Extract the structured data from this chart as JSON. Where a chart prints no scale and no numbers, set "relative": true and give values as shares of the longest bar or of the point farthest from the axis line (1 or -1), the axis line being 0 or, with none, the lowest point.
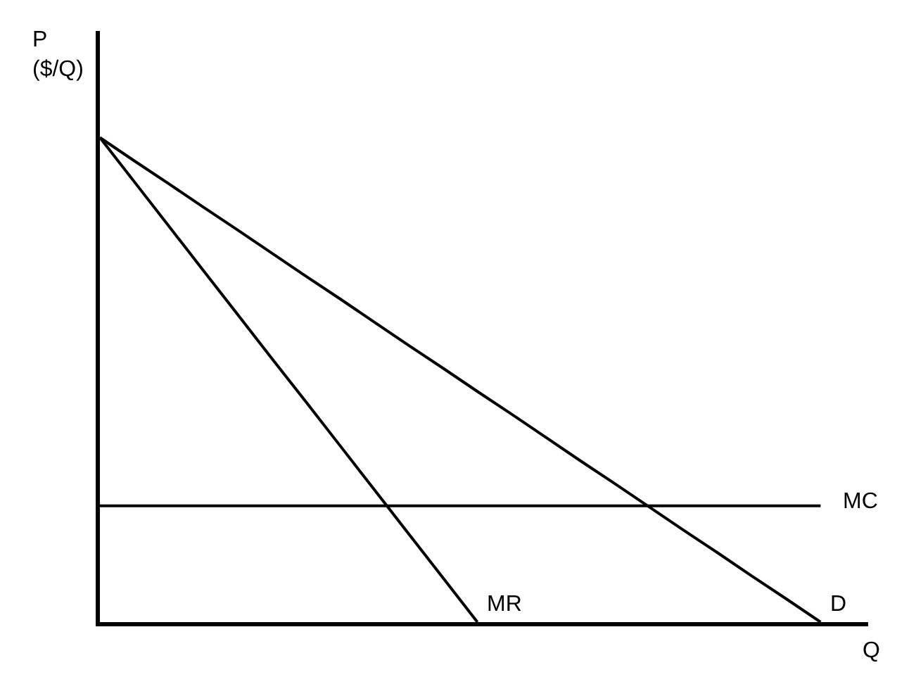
{
  "chart_data": {
    "type": "line",
    "relative": true,
    "ylabel": "P\n($/Q)",
    "xlabel": "Q",
    "marker": "none",
    "line_style": "solid",
    "categories": [
      null,
      null,
      null,
      null,
      null,
      null,
      null,
      null,
      null,
      null,
      null,
      null,
      null,
      null,
      null,
      null,
      null,
      null,
      null,
      null,
      null,
      null
    ],
    "series": [
      {
        "name": "D",
        "color": "#000000",
        "values": [
          1,
          0.952,
          0.905,
          0.857,
          0.81,
          0.762,
          0.714,
          0.667,
          0.619,
          0.571,
          0.524,
          0.476,
          0.429,
          0.381,
          0.333,
          0.286,
          0.238,
          0.19,
          0.143,
          0.095,
          0.048,
          0
        ]
      },
      {
        "name": "MR",
        "color": "#000000",
        "values": [
          1,
          0.909,
          0.818,
          0.727,
          0.636,
          0.545,
          0.455,
          0.364,
          0.273,
          0.182,
          0.091,
          0,
          null,
          null,
          null,
          null,
          null,
          null,
          null,
          null,
          null,
          null
        ]
      },
      {
        "name": "MC",
        "color": "#000000",
        "values": [
          0.24,
          0.24,
          0.24,
          0.24,
          0.24,
          0.24,
          0.24,
          0.24,
          0.24,
          0.24,
          0.24,
          0.24,
          0.24,
          0.24,
          0.24,
          0.24,
          0.24,
          0.24,
          0.24,
          0.24,
          0.24,
          0.24
        ]
      }
    ]
  }
}
